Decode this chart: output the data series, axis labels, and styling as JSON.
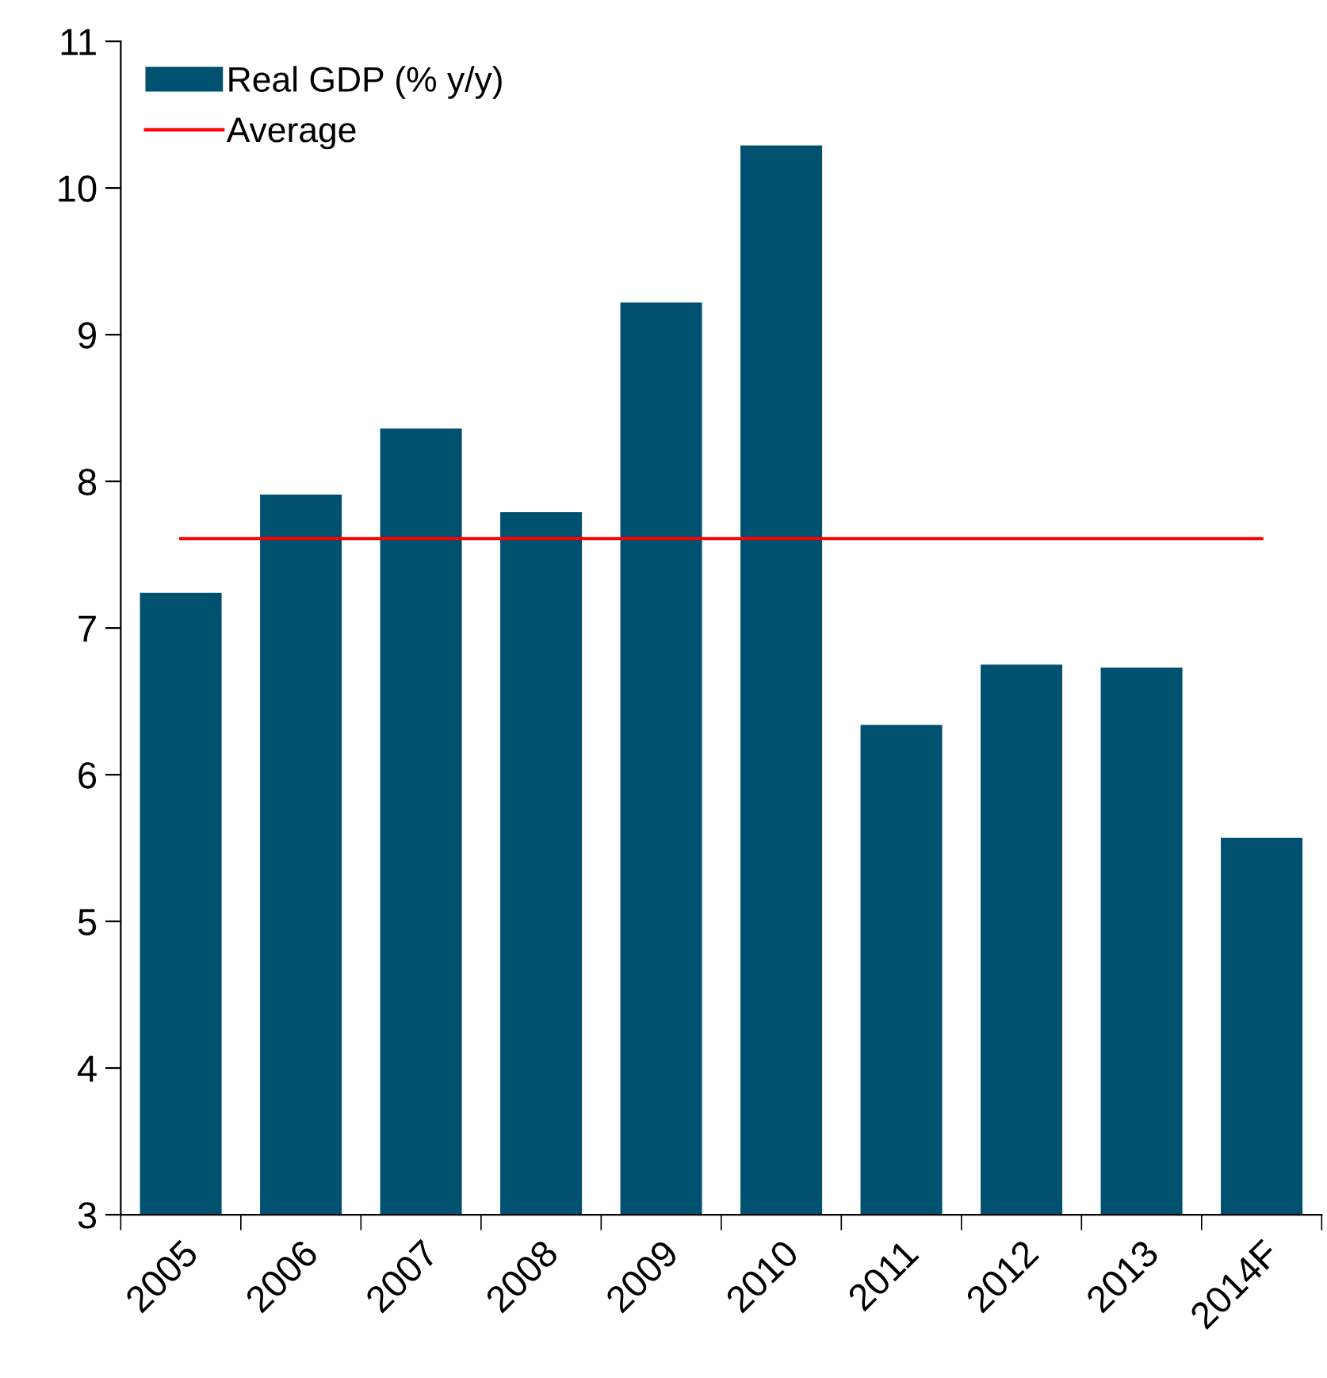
{
  "chart_data": {
    "type": "bar",
    "categories": [
      "2005",
      "2006",
      "2007",
      "2008",
      "2009",
      "2010",
      "2011",
      "2012",
      "2013",
      "2014F"
    ],
    "series": [
      {
        "name": "Real GDP (% y/y)",
        "color": "#005070",
        "values": [
          7.24,
          7.91,
          8.36,
          7.79,
          9.22,
          10.29,
          6.34,
          6.75,
          6.73,
          5.57
        ]
      },
      {
        "name": "Average",
        "type": "line",
        "color": "#ff0000",
        "values": [
          7.61,
          7.61,
          7.61,
          7.61,
          7.61,
          7.61,
          7.61,
          7.61,
          7.61,
          7.61
        ]
      }
    ],
    "ylim": [
      3,
      11
    ],
    "yticks": [
      3,
      4,
      5,
      6,
      7,
      8,
      9,
      10,
      11
    ],
    "grid": false,
    "legend": "top left",
    "marker": "none",
    "line_style": "solid"
  }
}
